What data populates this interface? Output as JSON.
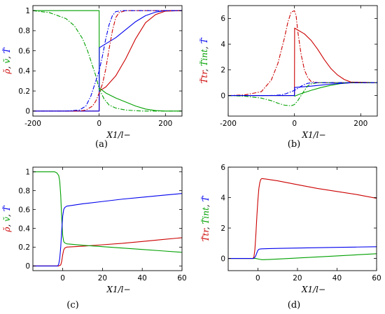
{
  "colors": {
    "red": "#cc0000",
    "green": "#00a000",
    "blue": "#0000ee"
  },
  "chart_data": [
    {
      "id": "a",
      "type": "line",
      "caption": "(a)",
      "xlabel": "X1/l−",
      "ylabel_parts": [
        {
          "text": "ρ̆",
          "color": "#cc0000"
        },
        {
          "text": ", ",
          "color": "#000000"
        },
        {
          "text": "v̆",
          "color": "#00a000"
        },
        {
          "text": ", ",
          "color": "#000000"
        },
        {
          "text": "T̆",
          "color": "#0000ee"
        }
      ],
      "xlim": [
        -200,
        250
      ],
      "ylim": [
        -0.05,
        1.05
      ],
      "xticks": [
        -200,
        0,
        200
      ],
      "xtick_labels": [
        "-200",
        "0",
        "200"
      ],
      "yticks": [
        0,
        0.2,
        0.4,
        0.6,
        0.8,
        1
      ],
      "ytick_labels": [
        "0",
        "0.2",
        "0.4",
        "0.6",
        "0.8",
        "1"
      ],
      "series": [
        {
          "color": "#cc0000",
          "dash": "",
          "x": [
            -200,
            -10,
            0,
            0.5,
            20,
            50,
            80,
            110,
            140,
            170,
            200,
            250
          ],
          "y": [
            0,
            0,
            0,
            0.2,
            0.24,
            0.35,
            0.52,
            0.72,
            0.88,
            0.96,
            0.995,
            1
          ]
        },
        {
          "color": "#00a000",
          "dash": "",
          "x": [
            -200,
            -2,
            -0.1,
            0.5,
            20,
            50,
            80,
            110,
            140,
            170,
            200,
            250
          ],
          "y": [
            1,
            1,
            1,
            0.23,
            0.18,
            0.13,
            0.09,
            0.05,
            0.02,
            0.005,
            0,
            0
          ]
        },
        {
          "color": "#0000ee",
          "dash": "",
          "x": [
            -200,
            -5,
            0,
            0.5,
            20,
            50,
            80,
            110,
            140,
            170,
            200,
            250
          ],
          "y": [
            0,
            0,
            0,
            0.63,
            0.67,
            0.73,
            0.81,
            0.89,
            0.95,
            0.985,
            1,
            1
          ]
        },
        {
          "color": "#cc0000",
          "dash": "6,2,1.5,2",
          "x": [
            -200,
            -60,
            -40,
            -20,
            -10,
            0,
            10,
            20,
            30,
            40,
            50,
            60,
            80,
            250
          ],
          "y": [
            0,
            0,
            0.01,
            0.05,
            0.1,
            0.18,
            0.27,
            0.42,
            0.62,
            0.8,
            0.93,
            0.98,
            1,
            1
          ]
        },
        {
          "color": "#00a000",
          "dash": "6,2,1.5,2",
          "x": [
            -200,
            -150,
            -100,
            -75,
            -50,
            -35,
            -20,
            -10,
            0,
            15,
            30,
            50,
            80,
            130,
            250
          ],
          "y": [
            1,
            0.98,
            0.92,
            0.85,
            0.72,
            0.6,
            0.45,
            0.35,
            0.22,
            0.12,
            0.06,
            0.03,
            0.01,
            0,
            0
          ]
        },
        {
          "color": "#0000ee",
          "dash": "6,2,1.5,2",
          "x": [
            -200,
            -100,
            -60,
            -40,
            -25,
            -10,
            0,
            10,
            20,
            30,
            40,
            50,
            70,
            250
          ],
          "y": [
            0,
            0,
            0.01,
            0.05,
            0.15,
            0.3,
            0.4,
            0.55,
            0.72,
            0.86,
            0.95,
            0.99,
            1,
            1
          ]
        }
      ]
    },
    {
      "id": "b",
      "type": "line",
      "caption": "(b)",
      "xlabel": "X1/l−",
      "ylabel_parts": [
        {
          "text": "T̆tr",
          "color": "#cc0000"
        },
        {
          "text": ", ",
          "color": "#000000"
        },
        {
          "text": "T̆int",
          "color": "#00a000"
        },
        {
          "text": ", ",
          "color": "#000000"
        },
        {
          "text": "T̆",
          "color": "#0000ee"
        }
      ],
      "xlim": [
        -200,
        250
      ],
      "ylim": [
        -1.6,
        7
      ],
      "xticks": [
        -200,
        0,
        200
      ],
      "xtick_labels": [
        "-200",
        "0",
        "200"
      ],
      "yticks": [
        0,
        2,
        4,
        6
      ],
      "ytick_labels": [
        "0",
        "2",
        "4",
        "6"
      ],
      "series": [
        {
          "color": "#cc0000",
          "dash": "",
          "x": [
            -200,
            -5,
            0,
            0.5,
            10,
            30,
            50,
            70,
            90,
            110,
            130,
            150,
            170,
            250
          ],
          "y": [
            0,
            0,
            0,
            5.25,
            5.1,
            4.8,
            4.3,
            3.6,
            2.8,
            2.1,
            1.6,
            1.25,
            1.05,
            1
          ]
        },
        {
          "color": "#00a000",
          "dash": "",
          "x": [
            -200,
            -5,
            0,
            0.5,
            20,
            50,
            80,
            110,
            140,
            170,
            250
          ],
          "y": [
            0,
            0,
            0,
            -0.05,
            0.15,
            0.4,
            0.62,
            0.8,
            0.93,
            1,
            1
          ]
        },
        {
          "color": "#0000ee",
          "dash": "",
          "x": [
            -200,
            -5,
            0,
            0.5,
            20,
            50,
            80,
            110,
            140,
            170,
            250
          ],
          "y": [
            0,
            0,
            0,
            0.63,
            0.67,
            0.73,
            0.81,
            0.89,
            0.95,
            0.99,
            1
          ]
        },
        {
          "color": "#cc0000",
          "dash": "6,2,1.5,2",
          "x": [
            -200,
            -150,
            -100,
            -70,
            -50,
            -30,
            -20,
            -10,
            0,
            5,
            10,
            20,
            30,
            40,
            50,
            70,
            250
          ],
          "y": [
            0,
            0.05,
            0.3,
            1.2,
            2.5,
            4.5,
            5.7,
            6.5,
            6.6,
            6.2,
            5.0,
            3.2,
            2.0,
            1.4,
            1.1,
            1.0,
            1
          ]
        },
        {
          "color": "#00a000",
          "dash": "6,2,1.5,2",
          "x": [
            -200,
            -150,
            -100,
            -70,
            -50,
            -30,
            -10,
            0,
            10,
            20,
            30,
            40,
            50,
            70,
            250
          ],
          "y": [
            0,
            -0.05,
            -0.2,
            -0.4,
            -0.6,
            -0.75,
            -0.8,
            -0.7,
            -0.4,
            0,
            0.4,
            0.75,
            0.9,
            1,
            1
          ]
        },
        {
          "color": "#0000ee",
          "dash": "6,2,1.5,2",
          "x": [
            -200,
            -100,
            -60,
            -40,
            -25,
            -10,
            0,
            10,
            20,
            30,
            40,
            50,
            70,
            250
          ],
          "y": [
            0,
            0,
            0.01,
            0.05,
            0.15,
            0.3,
            0.4,
            0.55,
            0.72,
            0.86,
            0.95,
            0.99,
            1,
            1
          ]
        }
      ]
    },
    {
      "id": "c",
      "type": "line",
      "caption": "(c)",
      "xlabel": "X1/l−",
      "ylabel_parts": [
        {
          "text": "ρ̆",
          "color": "#cc0000"
        },
        {
          "text": ", ",
          "color": "#000000"
        },
        {
          "text": "v̆",
          "color": "#00a000"
        },
        {
          "text": ", ",
          "color": "#000000"
        },
        {
          "text": "T̆",
          "color": "#0000ee"
        }
      ],
      "xlim": [
        -15,
        60
      ],
      "ylim": [
        -0.05,
        1.05
      ],
      "xticks": [
        0,
        20,
        40,
        60
      ],
      "xtick_labels": [
        "0",
        "20",
        "40",
        "60"
      ],
      "yticks": [
        0,
        0.2,
        0.4,
        0.6,
        0.8,
        1
      ],
      "ytick_labels": [
        "0",
        "0.2",
        "0.4",
        "0.6",
        "0.8",
        "1"
      ],
      "series": [
        {
          "color": "#cc0000",
          "dash": "",
          "x": [
            -15,
            -2,
            -1,
            -0.5,
            0,
            0.5,
            1,
            2,
            10,
            20,
            30,
            40,
            50,
            60
          ],
          "y": [
            0,
            0,
            0.01,
            0.05,
            0.12,
            0.17,
            0.19,
            0.2,
            0.21,
            0.225,
            0.24,
            0.26,
            0.28,
            0.3
          ]
        },
        {
          "color": "#00a000",
          "dash": "",
          "x": [
            -15,
            -4,
            -3,
            -2,
            -1.5,
            -1,
            -0.5,
            0,
            0.5,
            1,
            2,
            10,
            20,
            30,
            40,
            50,
            60
          ],
          "y": [
            1,
            1,
            0.99,
            0.96,
            0.9,
            0.75,
            0.5,
            0.32,
            0.26,
            0.245,
            0.235,
            0.22,
            0.205,
            0.19,
            0.175,
            0.16,
            0.145
          ]
        },
        {
          "color": "#0000ee",
          "dash": "",
          "x": [
            -15,
            -2.5,
            -2,
            -1.5,
            -1,
            -0.5,
            0,
            0.5,
            1,
            2,
            10,
            20,
            30,
            40,
            50,
            60
          ],
          "y": [
            0,
            0,
            0.02,
            0.08,
            0.2,
            0.38,
            0.53,
            0.6,
            0.62,
            0.635,
            0.66,
            0.685,
            0.71,
            0.73,
            0.75,
            0.77
          ]
        }
      ]
    },
    {
      "id": "d",
      "type": "line",
      "caption": "(d)",
      "xlabel": "X1/l−",
      "ylabel_parts": [
        {
          "text": "T̆tr",
          "color": "#cc0000"
        },
        {
          "text": ", ",
          "color": "#000000"
        },
        {
          "text": "T̆int",
          "color": "#00a000"
        },
        {
          "text": ", ",
          "color": "#000000"
        },
        {
          "text": "T̆",
          "color": "#0000ee"
        }
      ],
      "xlim": [
        -15,
        60
      ],
      "ylim": [
        -0.8,
        6
      ],
      "xticks": [
        0,
        20,
        40,
        60
      ],
      "xtick_labels": [
        "0",
        "20",
        "40",
        "60"
      ],
      "yticks": [
        0,
        2,
        4,
        6
      ],
      "ytick_labels": [
        "0",
        "2",
        "4",
        "6"
      ],
      "series": [
        {
          "color": "#cc0000",
          "dash": "",
          "x": [
            -15,
            -2.5,
            -2,
            -1.5,
            -1,
            -0.5,
            0,
            0.5,
            1,
            1.5,
            2,
            5,
            10,
            20,
            30,
            40,
            50,
            60
          ],
          "y": [
            0,
            0,
            0.1,
            0.6,
            1.6,
            2.8,
            3.8,
            4.6,
            5.0,
            5.2,
            5.25,
            5.2,
            5.1,
            4.85,
            4.6,
            4.4,
            4.2,
            3.95
          ]
        },
        {
          "color": "#00a000",
          "dash": "",
          "x": [
            -15,
            -2,
            -1,
            0,
            1,
            2,
            3,
            10,
            20,
            30,
            40,
            50,
            60
          ],
          "y": [
            0,
            0,
            0,
            -0.03,
            -0.06,
            -0.08,
            -0.08,
            -0.04,
            0.03,
            0.1,
            0.17,
            0.24,
            0.31
          ]
        },
        {
          "color": "#0000ee",
          "dash": "",
          "x": [
            -15,
            -2.5,
            -2,
            -1.5,
            -1,
            -0.5,
            0,
            0.5,
            1,
            2,
            10,
            20,
            30,
            40,
            50,
            60
          ],
          "y": [
            0,
            0,
            0.02,
            0.08,
            0.2,
            0.38,
            0.53,
            0.6,
            0.62,
            0.635,
            0.66,
            0.685,
            0.71,
            0.73,
            0.75,
            0.77
          ]
        }
      ]
    }
  ]
}
